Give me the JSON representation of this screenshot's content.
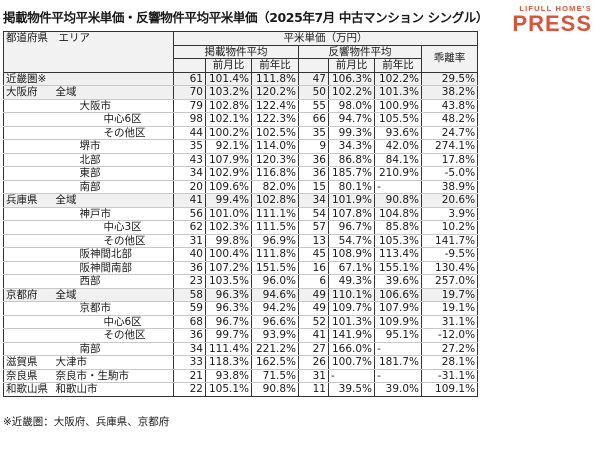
{
  "title": "掲載物件平均平米単価・反響物件平均平米単価（2025年7月 中古マンション シングル）",
  "brand": {
    "top": "LIFULL HOME'S",
    "main": "PRESS",
    "color": "#d9553a"
  },
  "headers": {
    "pref_area": "都道府県　エリア",
    "unit_price": "平米単価（万円）",
    "listed": "掲載物件平均",
    "inquiry": "反響物件平均",
    "divergence": "乖離率",
    "mom": "前月比",
    "yoy": "前年比"
  },
  "rows": [
    {
      "pref": "近畿圏※",
      "area": "",
      "indent": 0,
      "l": "61",
      "lm": "101.4%",
      "ly": "111.8%",
      "i": "47",
      "im": "106.3%",
      "iy": "102.2%",
      "d": "29.5%",
      "group": true
    },
    {
      "pref": "大阪府",
      "area": "全域",
      "indent": 0,
      "l": "70",
      "lm": "103.2%",
      "ly": "120.2%",
      "i": "50",
      "im": "102.2%",
      "iy": "101.3%",
      "d": "38.2%",
      "group": true
    },
    {
      "pref": "",
      "area": "大阪市",
      "indent": 1,
      "l": "79",
      "lm": "102.8%",
      "ly": "122.4%",
      "i": "55",
      "im": "98.0%",
      "iy": "100.9%",
      "d": "43.8%"
    },
    {
      "pref": "",
      "area": "中心6区",
      "indent": 2,
      "l": "98",
      "lm": "102.1%",
      "ly": "122.3%",
      "i": "66",
      "im": "94.7%",
      "iy": "105.5%",
      "d": "48.2%"
    },
    {
      "pref": "",
      "area": "その他区",
      "indent": 2,
      "l": "44",
      "lm": "100.2%",
      "ly": "102.5%",
      "i": "35",
      "im": "99.3%",
      "iy": "93.6%",
      "d": "24.7%"
    },
    {
      "pref": "",
      "area": "堺市",
      "indent": 1,
      "l": "35",
      "lm": "92.1%",
      "ly": "114.0%",
      "i": "9",
      "im": "34.3%",
      "iy": "42.0%",
      "d": "274.1%"
    },
    {
      "pref": "",
      "area": "北部",
      "indent": 1,
      "l": "43",
      "lm": "107.9%",
      "ly": "120.3%",
      "i": "36",
      "im": "86.8%",
      "iy": "84.1%",
      "d": "17.8%"
    },
    {
      "pref": "",
      "area": "東部",
      "indent": 1,
      "l": "34",
      "lm": "102.9%",
      "ly": "116.8%",
      "i": "36",
      "im": "185.7%",
      "iy": "210.9%",
      "d": "-5.0%"
    },
    {
      "pref": "",
      "area": "南部",
      "indent": 1,
      "l": "20",
      "lm": "109.6%",
      "ly": "82.0%",
      "i": "15",
      "im": "80.1%",
      "iy": "-",
      "d": "38.9%"
    },
    {
      "pref": "兵庫県",
      "area": "全域",
      "indent": 0,
      "l": "41",
      "lm": "99.4%",
      "ly": "102.8%",
      "i": "34",
      "im": "101.9%",
      "iy": "90.8%",
      "d": "20.6%",
      "group": true
    },
    {
      "pref": "",
      "area": "神戸市",
      "indent": 1,
      "l": "56",
      "lm": "101.0%",
      "ly": "111.1%",
      "i": "54",
      "im": "107.8%",
      "iy": "104.8%",
      "d": "3.9%"
    },
    {
      "pref": "",
      "area": "中心3区",
      "indent": 2,
      "l": "62",
      "lm": "102.3%",
      "ly": "111.5%",
      "i": "57",
      "im": "96.7%",
      "iy": "85.8%",
      "d": "10.2%"
    },
    {
      "pref": "",
      "area": "その他区",
      "indent": 2,
      "l": "31",
      "lm": "99.8%",
      "ly": "96.9%",
      "i": "13",
      "im": "54.7%",
      "iy": "105.3%",
      "d": "141.7%"
    },
    {
      "pref": "",
      "area": "阪神間北部",
      "indent": 1,
      "l": "40",
      "lm": "100.4%",
      "ly": "111.8%",
      "i": "45",
      "im": "108.9%",
      "iy": "113.4%",
      "d": "-9.5%"
    },
    {
      "pref": "",
      "area": "阪神間南部",
      "indent": 1,
      "l": "36",
      "lm": "107.2%",
      "ly": "151.5%",
      "i": "16",
      "im": "67.1%",
      "iy": "155.1%",
      "d": "130.4%"
    },
    {
      "pref": "",
      "area": "西部",
      "indent": 1,
      "l": "23",
      "lm": "103.5%",
      "ly": "96.0%",
      "i": "6",
      "im": "49.3%",
      "iy": "39.6%",
      "d": "257.0%"
    },
    {
      "pref": "京都府",
      "area": "全域",
      "indent": 0,
      "l": "58",
      "lm": "96.3%",
      "ly": "94.6%",
      "i": "49",
      "im": "110.1%",
      "iy": "106.6%",
      "d": "19.7%",
      "group": true
    },
    {
      "pref": "",
      "area": "京都市",
      "indent": 1,
      "l": "59",
      "lm": "96.3%",
      "ly": "94.2%",
      "i": "49",
      "im": "109.7%",
      "iy": "107.9%",
      "d": "19.1%"
    },
    {
      "pref": "",
      "area": "中心6区",
      "indent": 2,
      "l": "68",
      "lm": "96.7%",
      "ly": "96.6%",
      "i": "52",
      "im": "101.3%",
      "iy": "109.9%",
      "d": "31.1%"
    },
    {
      "pref": "",
      "area": "その他区",
      "indent": 2,
      "l": "36",
      "lm": "99.7%",
      "ly": "93.9%",
      "i": "41",
      "im": "141.9%",
      "iy": "95.1%",
      "d": "-12.0%"
    },
    {
      "pref": "",
      "area": "南部",
      "indent": 1,
      "l": "34",
      "lm": "111.4%",
      "ly": "221.2%",
      "i": "27",
      "im": "166.0%",
      "iy": "-",
      "d": "27.2%"
    },
    {
      "pref": "滋賀県",
      "area": "大津市",
      "indent": 1,
      "l": "33",
      "lm": "118.3%",
      "ly": "162.5%",
      "i": "26",
      "im": "100.7%",
      "iy": "181.7%",
      "d": "28.1%",
      "group": true
    },
    {
      "pref": "奈良県",
      "area": "奈良市・生駒市",
      "indent": 1,
      "l": "21",
      "lm": "93.8%",
      "ly": "71.5%",
      "i": "31",
      "im": "-",
      "iy": "-",
      "d": "-31.1%",
      "group": true
    },
    {
      "pref": "和歌山県",
      "area": "和歌山市",
      "indent": 1,
      "l": "22",
      "lm": "105.1%",
      "ly": "90.8%",
      "i": "11",
      "im": "39.5%",
      "iy": "39.0%",
      "d": "109.1%",
      "group": true
    }
  ],
  "note": "※近畿圏：大阪府、兵庫県、京都府"
}
